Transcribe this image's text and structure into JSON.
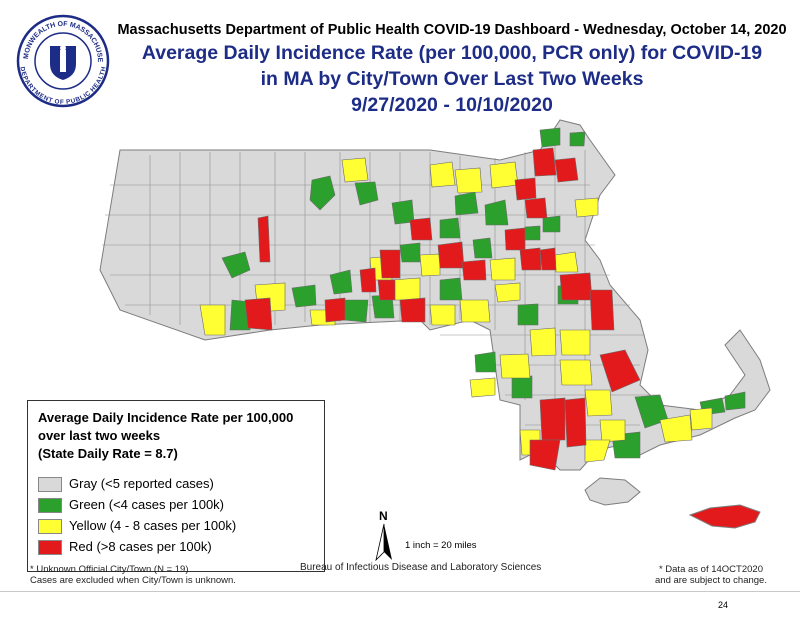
{
  "header": {
    "line1": "Massachusetts Department of Public Health COVID-19 Dashboard - Wednesday, October 14, 2020",
    "title_line1": "Average Daily Incidence Rate (per 100,000, PCR only) for COVID-19",
    "title_line2": "in MA by City/Town Over Last Two Weeks",
    "date_range": "9/27/2020 - 10/10/2020"
  },
  "seal": {
    "top_text": "COMMONWEALTH OF MASSACHUSETTS",
    "bottom_text": "DEPARTMENT OF PUBLIC HEALTH"
  },
  "legend": {
    "title_line1": "Average Daily Incidence Rate per 100,000",
    "title_line2": "over last two weeks",
    "title_line3": "(State Daily Rate = 8.7)",
    "items": [
      {
        "label": "Gray (<5 reported cases)",
        "color": "#d9d9d9"
      },
      {
        "label": "Green (<4 cases per 100k)",
        "color": "#2ca02c"
      },
      {
        "label": "Yellow (4 - 8 cases per 100k)",
        "color": "#ffff33"
      },
      {
        "label": "Red (>8 cases per 100k)",
        "color": "#e31a1c"
      }
    ]
  },
  "notes": {
    "unknown_line1": "* Unknown Official City/Town (N = 19)",
    "unknown_line2": "Cases are excluded when City/Town is unknown.",
    "north_label": "N",
    "scale": "1 inch = 20 miles",
    "bureau": "Bureau of Infectious Disease and Laboratory Sciences",
    "data_as_of_line1": "* Data as of 14OCT2020",
    "data_as_of_line2": "and are subject to change.",
    "page_number": "24"
  },
  "colors": {
    "title_blue": "#1d2c86",
    "border_gray": "#8a8a8a"
  }
}
